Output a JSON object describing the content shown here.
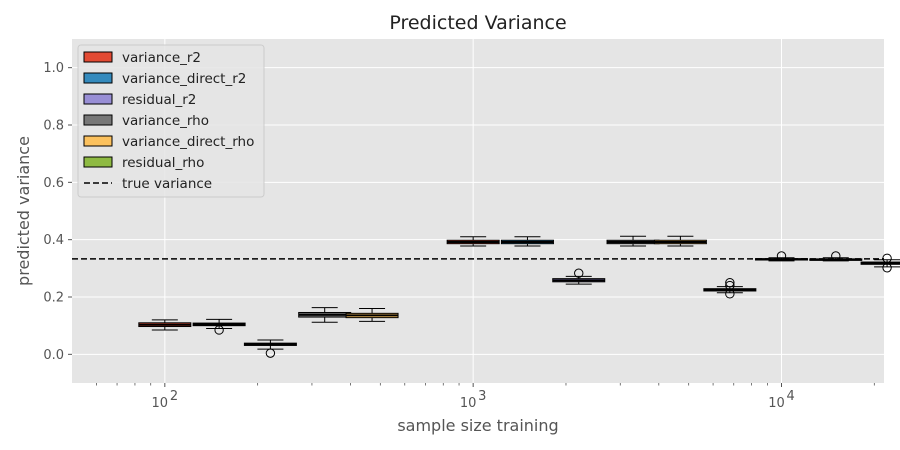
{
  "chart_data": {
    "type": "box",
    "title": "Predicted Variance",
    "xlabel": "sample size training",
    "ylabel": "predicted variance",
    "xscale": "log",
    "xlim": [
      50,
      21500
    ],
    "ylim": [
      -0.1,
      1.1
    ],
    "x_tick_labels": [
      {
        "value": 100,
        "label": "10",
        "exp": "2"
      },
      {
        "value": 1000,
        "label": "10",
        "exp": "3"
      },
      {
        "value": 10000,
        "label": "10",
        "exp": "4"
      }
    ],
    "y_ticks": [
      0.0,
      0.2,
      0.4,
      0.6,
      0.8,
      1.0
    ],
    "y_tick_labels": [
      "0.0",
      "0.2",
      "0.4",
      "0.6",
      "0.8",
      "1.0"
    ],
    "grid": true,
    "legend_position": "upper-left",
    "true_variance": 0.333,
    "series": [
      {
        "name": "variance_r2",
        "color": "#E24A33",
        "boxes": [
          {
            "x": 100,
            "whislo": 0.085,
            "q1": 0.097,
            "med": 0.103,
            "q3": 0.11,
            "whishi": 0.12,
            "fliers": []
          },
          {
            "x": 1000,
            "whislo": 0.378,
            "q1": 0.386,
            "med": 0.392,
            "q3": 0.398,
            "whishi": 0.41,
            "fliers": []
          },
          {
            "x": 10000,
            "whislo": 0.326,
            "q1": 0.329,
            "med": 0.331,
            "q3": 0.334,
            "whishi": 0.337,
            "fliers": [
              0.343
            ]
          }
        ]
      },
      {
        "name": "variance_direct_r2",
        "color": "#348ABD",
        "boxes": [
          {
            "x": 150,
            "whislo": 0.09,
            "q1": 0.1,
            "med": 0.104,
            "q3": 0.109,
            "whishi": 0.122,
            "fliers": [
              0.085
            ]
          },
          {
            "x": 1500,
            "whislo": 0.378,
            "q1": 0.386,
            "med": 0.392,
            "q3": 0.398,
            "whishi": 0.41,
            "fliers": []
          },
          {
            "x": 15000,
            "whislo": 0.326,
            "q1": 0.328,
            "med": 0.33,
            "q3": 0.333,
            "whishi": 0.337,
            "fliers": [
              0.343
            ]
          }
        ]
      },
      {
        "name": "residual_r2",
        "color": "#988ED5",
        "boxes": [
          {
            "x": 220,
            "whislo": 0.018,
            "q1": 0.031,
            "med": 0.035,
            "q3": 0.039,
            "whishi": 0.05,
            "fliers": [
              0.004
            ]
          },
          {
            "x": 2200,
            "whislo": 0.245,
            "q1": 0.253,
            "med": 0.258,
            "q3": 0.264,
            "whishi": 0.272,
            "fliers": [
              0.283
            ]
          },
          {
            "x": 22000,
            "whislo": 0.305,
            "q1": 0.314,
            "med": 0.318,
            "q3": 0.322,
            "whishi": 0.33,
            "fliers": [
              0.302,
              0.335
            ]
          }
        ]
      },
      {
        "name": "variance_rho",
        "color": "#777777",
        "boxes": [
          {
            "x": 330,
            "whislo": 0.112,
            "q1": 0.13,
            "med": 0.138,
            "q3": 0.146,
            "whishi": 0.163,
            "fliers": []
          },
          {
            "x": 3300,
            "whislo": 0.378,
            "q1": 0.386,
            "med": 0.392,
            "q3": 0.398,
            "whishi": 0.412,
            "fliers": []
          }
        ]
      },
      {
        "name": "variance_direct_rho",
        "color": "#FBC15E",
        "boxes": [
          {
            "x": 470,
            "whislo": 0.115,
            "q1": 0.128,
            "med": 0.136,
            "q3": 0.143,
            "whishi": 0.16,
            "fliers": []
          },
          {
            "x": 4700,
            "whislo": 0.378,
            "q1": 0.386,
            "med": 0.392,
            "q3": 0.398,
            "whishi": 0.412,
            "fliers": []
          }
        ]
      },
      {
        "name": "residual_rho",
        "color": "#8EBA42",
        "boxes": [
          {
            "x": 6800,
            "whislo": 0.215,
            "q1": 0.221,
            "med": 0.225,
            "q3": 0.229,
            "whishi": 0.236,
            "fliers": [
              0.211,
              0.24,
              0.25
            ]
          }
        ]
      }
    ],
    "legend_extra": {
      "name": "true variance",
      "style": "dashed"
    }
  }
}
